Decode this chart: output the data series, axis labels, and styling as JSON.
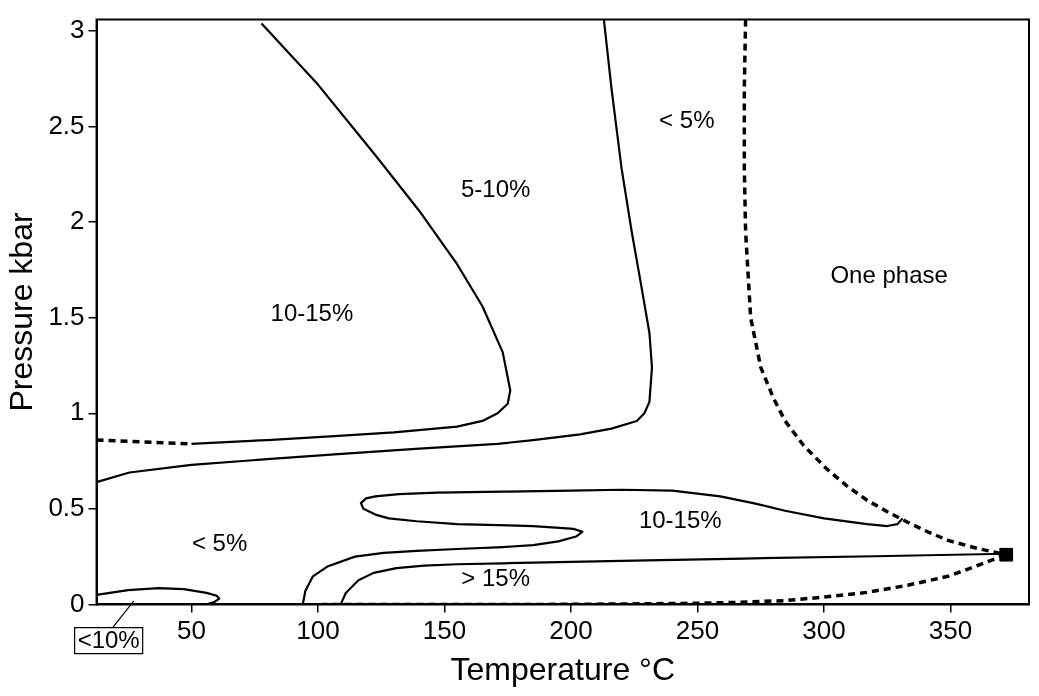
{
  "chart_data": {
    "type": "line",
    "xlabel": "Temperature °C",
    "ylabel": "Pressure kbar",
    "xlim": [
      12.5,
      381
    ],
    "ylim": [
      0,
      3.06
    ],
    "xticks": [
      50,
      100,
      150,
      200,
      250,
      300,
      350
    ],
    "yticks": [
      0,
      0.5,
      1,
      1.5,
      2,
      2.5,
      3
    ],
    "series": [
      {
        "color": "#000000",
        "line_style": "solid",
        "x": [
          77.7,
          100,
          122.7,
          140,
          155,
          165,
          173,
          176,
          175,
          171,
          165,
          155,
          130,
          106.5,
          80,
          50
        ],
        "values": [
          3.04,
          2.72,
          2.35,
          2.06,
          1.78,
          1.56,
          1.32,
          1.12,
          1.05,
          1.0,
          0.96,
          0.93,
          0.9,
          0.88,
          0.86,
          0.84
        ]
      },
      {
        "color": "#000000",
        "line_style": "dashed",
        "x": [
          12.5,
          50
        ],
        "values": [
          0.86,
          0.84
        ]
      },
      {
        "color": "#000000",
        "line_style": "solid",
        "x": [
          213,
          216,
          220,
          224,
          228,
          231,
          232,
          231,
          229,
          226,
          216,
          203.6,
          185,
          171,
          140,
          106.5,
          80,
          50,
          25.5,
          12.5
        ],
        "values": [
          3.06,
          2.7,
          2.28,
          1.95,
          1.65,
          1.42,
          1.24,
          1.06,
          1.0,
          0.96,
          0.92,
          0.89,
          0.86,
          0.84,
          0.815,
          0.785,
          0.76,
          0.73,
          0.69,
          0.64
        ]
      },
      {
        "color": "#000000",
        "line_style": "dashed",
        "x": [
          269,
          268.5,
          268.5,
          269,
          271,
          275,
          280,
          284.6,
          292,
          301,
          309,
          317,
          325,
          333,
          341,
          349,
          360,
          371.7
        ],
        "values": [
          3.06,
          2.7,
          2.28,
          1.95,
          1.5,
          1.24,
          1.08,
          0.96,
          0.83,
          0.71,
          0.62,
          0.545,
          0.485,
          0.43,
          0.38,
          0.335,
          0.295,
          0.26
        ]
      },
      {
        "color": "#000000",
        "line_style": "dashed",
        "x": [
          371.7,
          360,
          349,
          333,
          317,
          300,
          284.6,
          265,
          244,
          220,
          190,
          160,
          130,
          101.6
        ],
        "values": [
          0.26,
          0.2,
          0.147,
          0.1,
          0.063,
          0.038,
          0.02,
          0.01,
          0.005,
          0.002,
          0,
          0,
          0,
          0
        ]
      },
      {
        "color": "#000000",
        "line_style": "solid",
        "x": [
          109,
          111,
          116,
          122,
          131,
          142,
          155,
          173,
          200,
          230,
          268,
          320,
          372
        ],
        "values": [
          0,
          0.06,
          0.126,
          0.165,
          0.19,
          0.203,
          0.21,
          0.215,
          0.222,
          0.23,
          0.24,
          0.252,
          0.265
        ]
      },
      {
        "color": "#000000",
        "line_style": "solid",
        "x": [
          94,
          95,
          98,
          104,
          114.6,
          126,
          139,
          155,
          173,
          185,
          195,
          202,
          204.5,
          201,
          195.5,
          185,
          171,
          155,
          139,
          128,
          122.7,
          118,
          117,
          119,
          122.7,
          132,
          147,
          173,
          200,
          220,
          240,
          259,
          272,
          284.6,
          300,
          317,
          325,
          329,
          331
        ],
        "values": [
          0,
          0.07,
          0.147,
          0.2,
          0.25,
          0.27,
          0.28,
          0.29,
          0.3,
          0.31,
          0.33,
          0.355,
          0.38,
          0.395,
          0.4,
          0.41,
          0.415,
          0.42,
          0.435,
          0.45,
          0.47,
          0.5,
          0.53,
          0.555,
          0.565,
          0.577,
          0.585,
          0.59,
          0.595,
          0.6,
          0.595,
          0.565,
          0.53,
          0.49,
          0.45,
          0.42,
          0.41,
          0.42,
          0.45
        ]
      },
      {
        "color": "#000000",
        "line_style": "solid",
        "x": [
          12.5,
          25,
          37,
          47,
          56,
          60,
          61,
          59,
          56
        ],
        "values": [
          0.05,
          0.075,
          0.085,
          0.08,
          0.06,
          0.045,
          0.03,
          0.012,
          0
        ]
      },
      {
        "type": "scatter",
        "color": "#000000",
        "marker": "square",
        "x": [
          372
        ],
        "values": [
          0.26
        ]
      }
    ],
    "annotations": [
      "5-10%",
      "10-15%",
      "< 5%",
      "One phase",
      "< 5%",
      "10-15%",
      "> 15%",
      "<10%"
    ]
  }
}
